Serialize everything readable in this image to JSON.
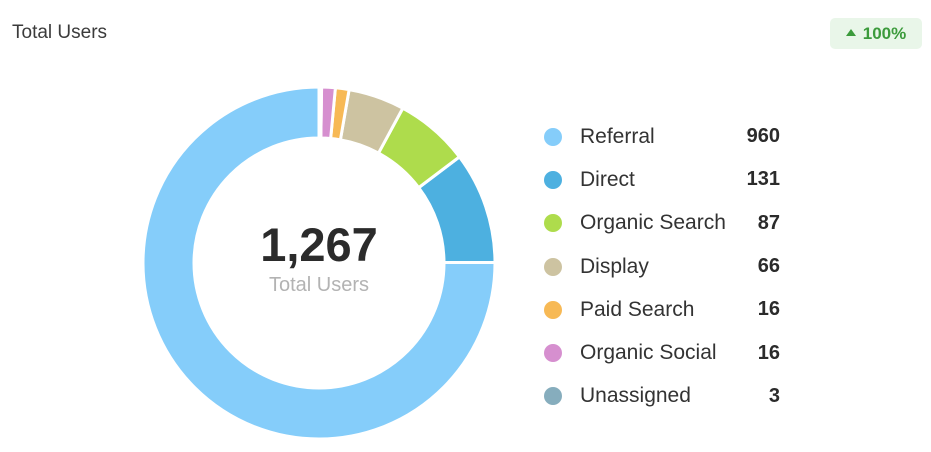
{
  "header": {
    "title": "Total Users",
    "badge": {
      "text": "100%",
      "icon": "triangle-up-icon",
      "color": "#3c9b3c",
      "background": "#e9f6e9"
    }
  },
  "chart_data": {
    "type": "pie",
    "style": "donut",
    "title": "Total Users",
    "center_value": "1,267",
    "center_label": "Total Users",
    "categories": [
      "Referral",
      "Direct",
      "Organic Search",
      "Display",
      "Paid Search",
      "Organic Social",
      "Unassigned"
    ],
    "values": [
      960,
      131,
      87,
      66,
      16,
      16,
      3
    ],
    "colors": [
      "#85cdfa",
      "#4db0e0",
      "#aedc4c",
      "#cdc3a1",
      "#f7b955",
      "#d68fcf",
      "#86adbd"
    ],
    "legend": "right"
  }
}
